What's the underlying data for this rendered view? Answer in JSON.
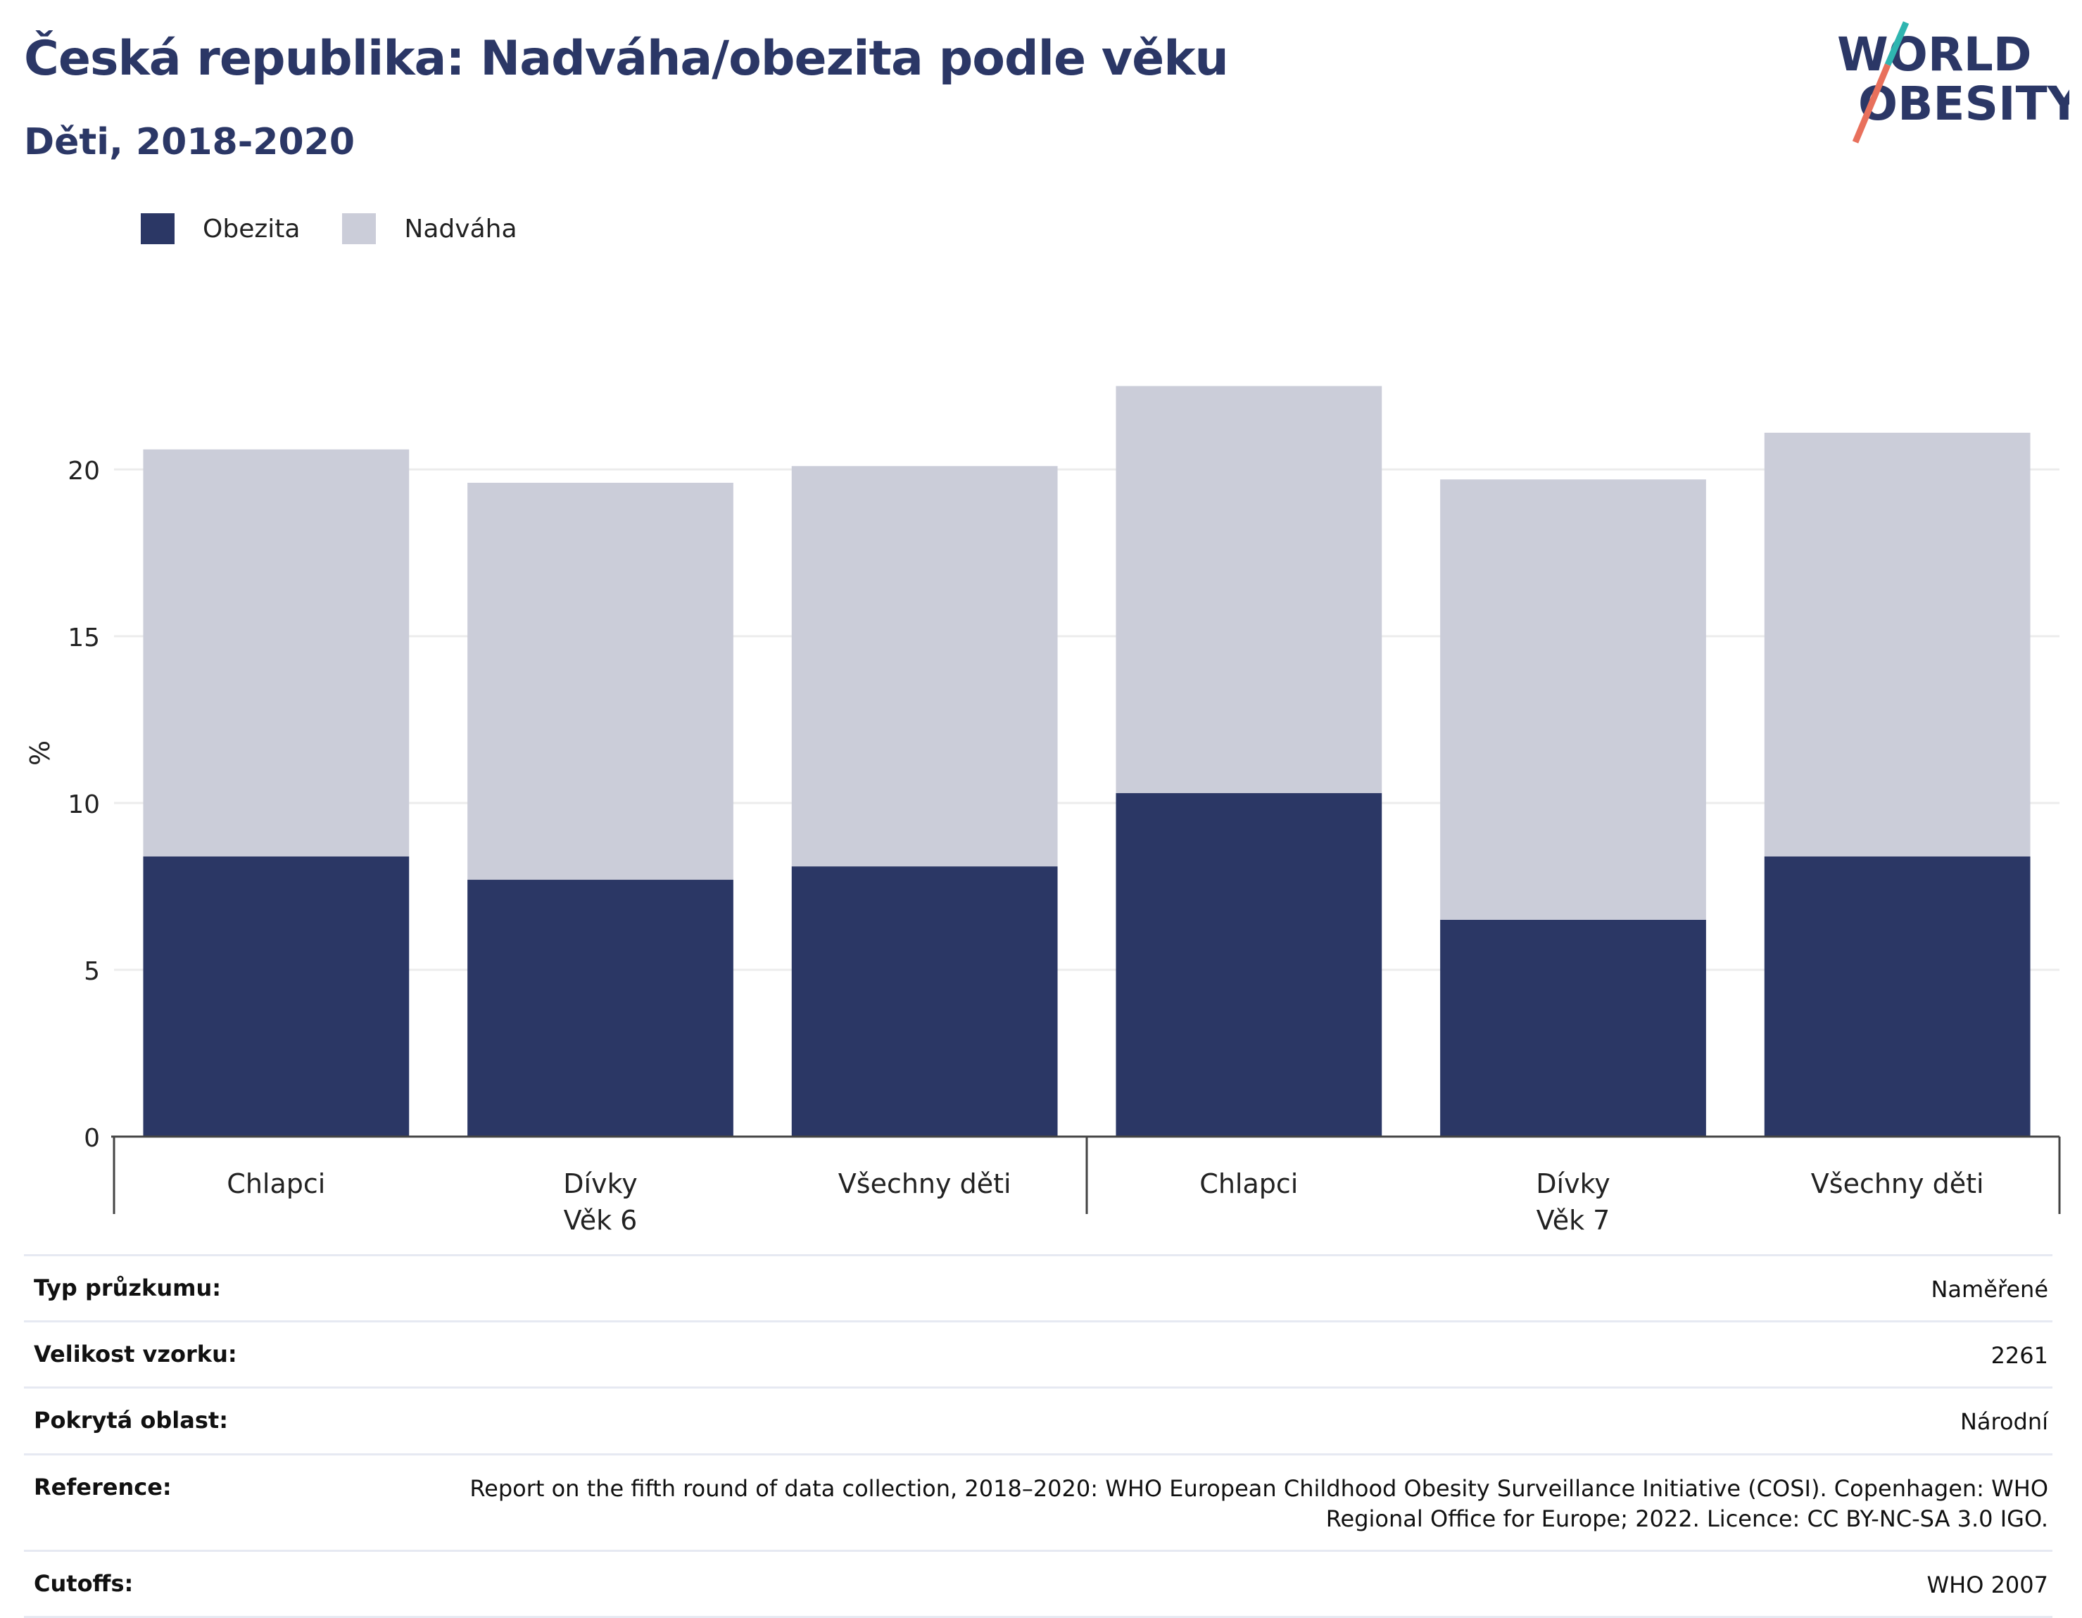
{
  "header": {
    "title": "Česká republika: Nadváha/obezita podle věku",
    "subtitle": "Děti, 2018-2020"
  },
  "logo": {
    "line1": "WORLD",
    "line2": "OBESITY"
  },
  "colors": {
    "obezita": "#2b3765",
    "nadvaha": "#cbcdd9",
    "title": "#2b3766"
  },
  "legend": [
    {
      "label": "Obezita",
      "color": "#2b3765"
    },
    {
      "label": "Nadváha",
      "color": "#cbcdd9"
    }
  ],
  "chart_data": {
    "type": "bar",
    "stacked": true,
    "ylabel": "%",
    "ylim": [
      0,
      23
    ],
    "yticks": [
      0,
      5,
      10,
      15,
      20
    ],
    "grid": true,
    "legend_position": "top-left",
    "categories": [
      "Chlapci",
      "Dívky",
      "Všechny děti",
      "Chlapci",
      "Dívky",
      "Všechny děti"
    ],
    "groups": [
      {
        "label": "Věk 6",
        "span": [
          0,
          2
        ]
      },
      {
        "label": "Věk 7",
        "span": [
          3,
          5
        ]
      }
    ],
    "series": [
      {
        "name": "Obezita",
        "values": [
          8.4,
          7.7,
          8.1,
          10.3,
          6.5,
          8.4
        ]
      },
      {
        "name": "Nadváha",
        "values": [
          12.2,
          11.9,
          12.0,
          12.2,
          13.2,
          12.7
        ]
      }
    ]
  },
  "info": [
    {
      "label": "Typ průzkumu:",
      "value": "Naměřené"
    },
    {
      "label": "Velikost vzorku:",
      "value": "2261"
    },
    {
      "label": "Pokrytá oblast:",
      "value": "Národní"
    },
    {
      "label": "Reference:",
      "value": "Report on the fifth round of data collection, 2018–2020: WHO European Childhood Obesity Surveillance Initiative (COSI). Copenhagen: WHO Regional Office for Europe; 2022. Licence: CC BY-NC-SA 3.0 IGO."
    },
    {
      "label": "Cutoffs:",
      "value": "WHO 2007"
    }
  ]
}
